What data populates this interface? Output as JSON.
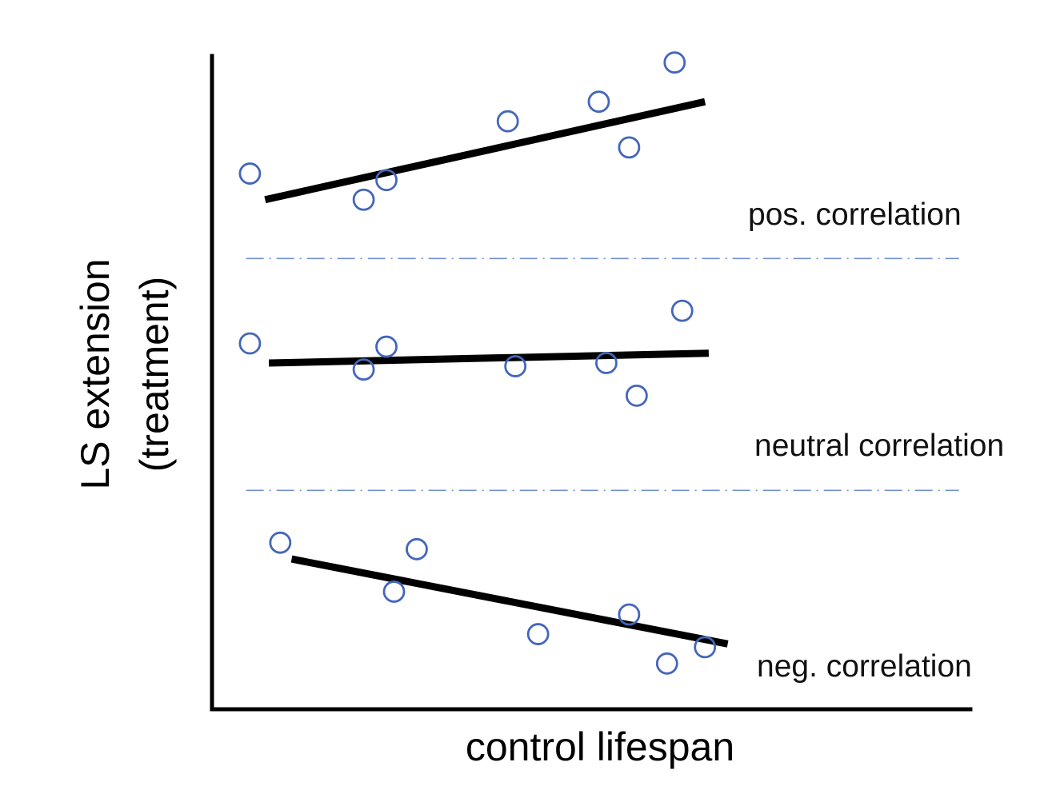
{
  "chart_data": {
    "type": "scatter",
    "title": "",
    "xlabel": "control lifespan",
    "ylabel_lines": [
      "LS extension",
      "(treatment)"
    ],
    "point_color": "#4466bb",
    "separator_color": "#6f8fd0",
    "grid": false,
    "xlim": [
      0,
      10
    ],
    "ylim": [
      0,
      10
    ],
    "groups": [
      {
        "name": "pos. correlation",
        "label": "pos. correlation",
        "points": [
          [
            0.5,
            8.2
          ],
          [
            2.0,
            7.8
          ],
          [
            2.3,
            8.1
          ],
          [
            3.9,
            9.0
          ],
          [
            5.1,
            9.3
          ],
          [
            5.5,
            8.6
          ],
          [
            6.1,
            9.9
          ]
        ],
        "trend": [
          [
            0.7,
            7.8
          ],
          [
            6.5,
            9.3
          ]
        ]
      },
      {
        "name": "neutral correlation",
        "label": "neutral correlation",
        "points": [
          [
            0.5,
            5.6
          ],
          [
            2.0,
            5.2
          ],
          [
            2.3,
            5.55
          ],
          [
            4.0,
            5.25
          ],
          [
            5.2,
            5.3
          ],
          [
            5.6,
            4.8
          ],
          [
            6.2,
            6.1
          ]
        ],
        "trend": [
          [
            0.75,
            5.3
          ],
          [
            6.55,
            5.45
          ]
        ]
      },
      {
        "name": "neg. correlation",
        "label": "neg. correlation",
        "points": [
          [
            0.9,
            2.55
          ],
          [
            2.4,
            1.8
          ],
          [
            2.7,
            2.45
          ],
          [
            4.3,
            1.15
          ],
          [
            5.5,
            1.45
          ],
          [
            6.0,
            0.7
          ],
          [
            6.5,
            0.95
          ]
        ],
        "trend": [
          [
            1.05,
            2.3
          ],
          [
            6.8,
            1.0
          ]
        ]
      }
    ],
    "separators": [
      6.9,
      3.35
    ]
  }
}
